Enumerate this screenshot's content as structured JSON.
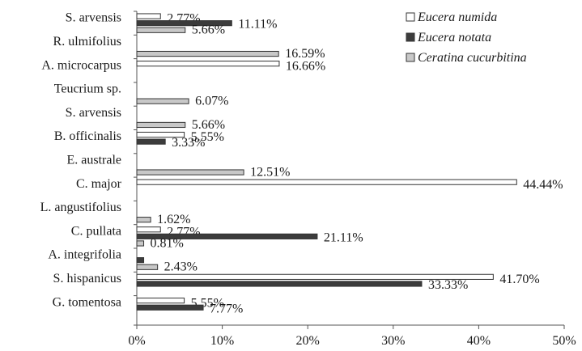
{
  "chart_data": {
    "type": "bar",
    "orientation": "horizontal",
    "categories": [
      "S. arvensis",
      "R. ulmifolius",
      "A. microcarpus",
      "Teucrium sp.",
      "S. arvensis",
      "B. officinalis",
      "E. australe",
      "C. major",
      "L. angustifolius",
      "C. pullata",
      "A. integrifolia",
      "S. hispanicus",
      "G. tomentosa"
    ],
    "series": [
      {
        "name": "Eucera numida",
        "color": "#ffffff",
        "values": [
          2.77,
          null,
          16.66,
          null,
          null,
          5.55,
          null,
          44.44,
          null,
          2.77,
          null,
          41.7,
          5.55
        ],
        "labels": [
          "2.77%",
          "",
          "16.66%",
          "",
          "",
          "5.55%",
          "",
          "44.44%",
          "",
          "2.77%",
          "",
          "41.70%",
          "5.55%"
        ]
      },
      {
        "name": "Eucera notata",
        "color": "#3c3c3c",
        "values": [
          11.11,
          null,
          null,
          null,
          null,
          3.33,
          null,
          null,
          null,
          21.11,
          0.81,
          33.33,
          7.77
        ],
        "labels": [
          "11.11%",
          "",
          "",
          "",
          "",
          "3.33%",
          "",
          "",
          "",
          "21.11%",
          "",
          "33.33%",
          "7.77%"
        ]
      },
      {
        "name": "Ceratina cucurbitina",
        "color": "#c8c8c8",
        "values": [
          5.66,
          16.59,
          null,
          6.07,
          5.66,
          null,
          12.51,
          null,
          1.62,
          0.81,
          2.43,
          null,
          null
        ],
        "labels": [
          "5.66%",
          "16.59%",
          "",
          "6.07%",
          "5.66%",
          "",
          "12.51%",
          "",
          "1.62%",
          "0.81%",
          "2.43%",
          "",
          ""
        ]
      }
    ],
    "xlim": [
      0,
      50
    ],
    "xticks": [
      "0%",
      "10%",
      "20%",
      "30%",
      "40%",
      "50%"
    ],
    "legend_position": "top-right",
    "grid": false
  }
}
